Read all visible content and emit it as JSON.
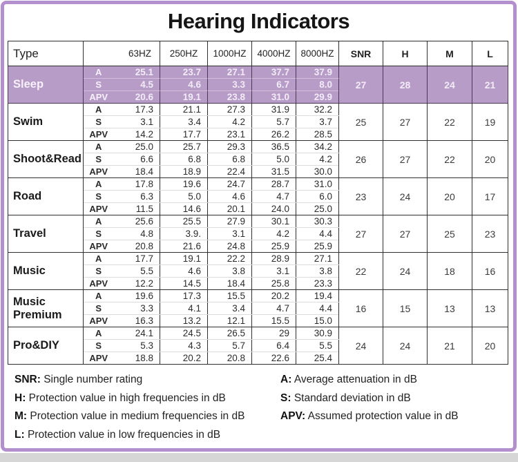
{
  "title": "Hearing Indicators",
  "colors": {
    "frame_border": "#b48fcd",
    "highlight_row_bg": "#b89cc8",
    "highlight_row_text": "#f2ecf7",
    "grid_line": "#2e2e2e",
    "bottom_strip": "#d6d6d6"
  },
  "table": {
    "header": {
      "type": "Type",
      "freqs": [
        "63HZ",
        "250HZ",
        "1000HZ",
        "4000HZ",
        "8000HZ"
      ],
      "summary": [
        "SNR",
        "H",
        "M",
        "L"
      ]
    },
    "sub_labels": [
      "A",
      "S",
      "APV"
    ]
  },
  "chart_data": {
    "type": "table",
    "title": "Hearing Indicators",
    "columns": [
      "Type",
      "",
      "63HZ",
      "250HZ",
      "1000HZ",
      "4000HZ",
      "8000HZ",
      "SNR",
      "H",
      "M",
      "L"
    ],
    "sub_rows": [
      "A",
      "S",
      "APV"
    ],
    "groups": [
      {
        "type": "Sleep",
        "highlight": true,
        "A": [
          "25.1",
          "23.7",
          "27.1",
          "37.7",
          "37.9"
        ],
        "S": [
          "4.5",
          "4.6",
          "3.3",
          "6.7",
          "8.0"
        ],
        "APV": [
          "20.6",
          "19.1",
          "23.8",
          "31.0",
          "29.9"
        ],
        "SNR": "27",
        "H": "28",
        "M": "24",
        "L": "21"
      },
      {
        "type": "Swim",
        "highlight": false,
        "A": [
          "17.3",
          "21.1",
          "27.3",
          "31.9",
          "32.2"
        ],
        "S": [
          "3.1",
          "3.4",
          "4.2",
          "5.7",
          "3.7"
        ],
        "APV": [
          "14.2",
          "17.7",
          "23.1",
          "26.2",
          "28.5"
        ],
        "SNR": "25",
        "H": "27",
        "M": "22",
        "L": "19"
      },
      {
        "type": "Shoot&Read",
        "highlight": false,
        "A": [
          "25.0",
          "25.7",
          "29.3",
          "36.5",
          "34.2"
        ],
        "S": [
          "6.6",
          "6.8",
          "6.8",
          "5.0",
          "4.2"
        ],
        "APV": [
          "18.4",
          "18.9",
          "22.4",
          "31.5",
          "30.0"
        ],
        "SNR": "26",
        "H": "27",
        "M": "22",
        "L": "20"
      },
      {
        "type": "Road",
        "highlight": false,
        "A": [
          "17.8",
          "19.6",
          "24.7",
          "28.7",
          "31.0"
        ],
        "S": [
          "6.3",
          "5.0",
          "4.6",
          "4.7",
          "6.0"
        ],
        "APV": [
          "11.5",
          "14.6",
          "20.1",
          "24.0",
          "25.0"
        ],
        "SNR": "23",
        "H": "24",
        "M": "20",
        "L": "17"
      },
      {
        "type": "Travel",
        "highlight": false,
        "A": [
          "25.6",
          "25.5",
          "27.9",
          "30.1",
          "30.3"
        ],
        "S": [
          "4.8",
          "3.9.",
          "3.1",
          "4.2",
          "4.4"
        ],
        "APV": [
          "20.8",
          "21.6",
          "24.8",
          "25.9",
          "25.9"
        ],
        "SNR": "27",
        "H": "27",
        "M": "25",
        "L": "23"
      },
      {
        "type": "Music",
        "highlight": false,
        "A": [
          "17.7",
          "19.1",
          "22.2",
          "28.9",
          "27.1"
        ],
        "S": [
          "5.5",
          "4.6",
          "3.8",
          "3.1",
          "3.8"
        ],
        "APV": [
          "12.2",
          "14.5",
          "18.4",
          "25.8",
          "23.3"
        ],
        "SNR": "22",
        "H": "24",
        "M": "18",
        "L": "16"
      },
      {
        "type": "Music Premium",
        "highlight": false,
        "A": [
          "19.6",
          "17.3",
          "15.5",
          "20.2",
          "19.4"
        ],
        "S": [
          "3.3",
          "4.1",
          "3.4",
          "4.7",
          "4.4"
        ],
        "APV": [
          "16.3",
          "13.2",
          "12.1",
          "15.5",
          "15.0"
        ],
        "SNR": "16",
        "H": "15",
        "M": "13",
        "L": "13"
      },
      {
        "type": "Pro&DIY",
        "highlight": false,
        "A": [
          "24.1",
          "24.5",
          "26.5",
          "29",
          "30.9"
        ],
        "S": [
          "5.3",
          "4.3",
          "5.7",
          "6.4",
          "5.5"
        ],
        "APV": [
          "18.8",
          "20.2",
          "20.8",
          "22.6",
          "25.4"
        ],
        "SNR": "24",
        "H": "24",
        "M": "21",
        "L": "20"
      }
    ]
  },
  "legend": {
    "left": [
      {
        "label": "SNR:",
        "text": "Single number rating"
      },
      {
        "label": "H:",
        "text": "Protection value in high frequencies in dB"
      },
      {
        "label": "M:",
        "text": "Protection value in medium frequencies in dB"
      },
      {
        "label": "L:",
        "text": "Protection value in low frequencies in dB"
      }
    ],
    "right": [
      {
        "label": "A:",
        "text": "Average attenuation in dB"
      },
      {
        "label": "S:",
        "text": "Standard deviation in dB"
      },
      {
        "label": "APV:",
        "text": "Assumed protection value in dB"
      }
    ]
  }
}
